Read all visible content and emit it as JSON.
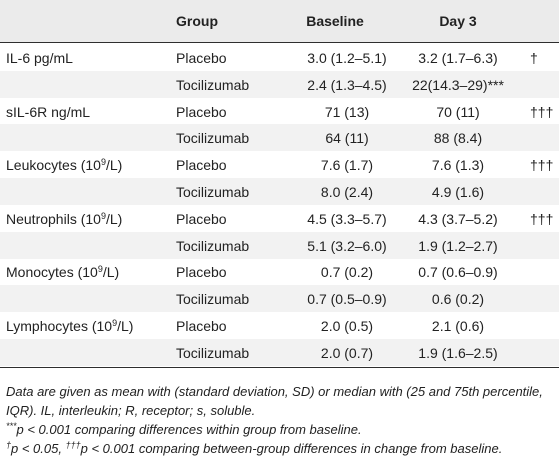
{
  "table": {
    "headers": {
      "parameter": "",
      "group": "Group",
      "baseline": "Baseline",
      "day3": "Day 3",
      "significance": ""
    },
    "rows": [
      {
        "param": "IL-6 pg/mL",
        "param_unit": "",
        "param_tail": "",
        "group": "Placebo",
        "baseline": "3.0 (1.2–5.1)",
        "day3": "3.2 (1.7–6.3)",
        "sig": "†"
      },
      {
        "param": "",
        "param_unit": "",
        "param_tail": "",
        "group": "Tocilizumab",
        "baseline": "2.4 (1.3–4.5)",
        "day3": "22(14.3–29)***",
        "sig": ""
      },
      {
        "param": "sIL-6R ng/mL",
        "param_unit": "",
        "param_tail": "",
        "group": "Placebo",
        "baseline": "71 (13)",
        "day3": "70 (11)",
        "sig": "†††"
      },
      {
        "param": "",
        "param_unit": "",
        "param_tail": "",
        "group": "Tocilizumab",
        "baseline": "64 (11)",
        "day3": "88 (8.4)",
        "sig": ""
      },
      {
        "param": "Leukocytes (10",
        "param_unit": "9",
        "param_tail": "/L)",
        "group": "Placebo",
        "baseline": "7.6 (1.7)",
        "day3": "7.6 (1.3)",
        "sig": "†††"
      },
      {
        "param": "",
        "param_unit": "",
        "param_tail": "",
        "group": "Tocilizumab",
        "baseline": "8.0 (2.4)",
        "day3": "4.9 (1.6)",
        "sig": ""
      },
      {
        "param": "Neutrophils (10",
        "param_unit": "9",
        "param_tail": "/L)",
        "group": "Placebo",
        "baseline": "4.5 (3.3–5.7)",
        "day3": "4.3 (3.7–5.2)",
        "sig": "†††"
      },
      {
        "param": "",
        "param_unit": "",
        "param_tail": "",
        "group": "Tocilizumab",
        "baseline": "5.1 (3.2–6.0)",
        "day3": "1.9 (1.2–2.7)",
        "sig": ""
      },
      {
        "param": "Monocytes (10",
        "param_unit": "9",
        "param_tail": "/L)",
        "group": "Placebo",
        "baseline": "0.7 (0.2)",
        "day3": "0.7 (0.6–0.9)",
        "sig": ""
      },
      {
        "param": "",
        "param_unit": "",
        "param_tail": "",
        "group": "Tocilizumab",
        "baseline": "0.7 (0.5–0.9)",
        "day3": "0.6 (0.2)",
        "sig": ""
      },
      {
        "param": "Lymphocytes (10",
        "param_unit": "9",
        "param_tail": "/L)",
        "group": "Placebo",
        "baseline": "2.0 (0.5)",
        "day3": "2.1 (0.6)",
        "sig": ""
      },
      {
        "param": "",
        "param_unit": "",
        "param_tail": "",
        "group": "Tocilizumab",
        "baseline": "2.0 (0.7)",
        "day3": "1.9 (1.6–2.5)",
        "sig": ""
      }
    ]
  },
  "notes": {
    "line1": "Data are given as mean with (standard deviation, SD) or median with (25 and 75th percentile, IQR). IL, interleukin; R, receptor; s, soluble.",
    "line2_sup": "***",
    "line2": "p < 0.001 comparing differences within group from baseline.",
    "line3_sup1": "†",
    "line3_a": "p < 0.05, ",
    "line3_sup2": "†††",
    "line3_b": "p < 0.001 comparing between-group differences in change from baseline."
  },
  "colors": {
    "header_bg": "#ebebeb",
    "stripe_bg": "#f2f2f2",
    "rule": "#2e2e2e"
  }
}
